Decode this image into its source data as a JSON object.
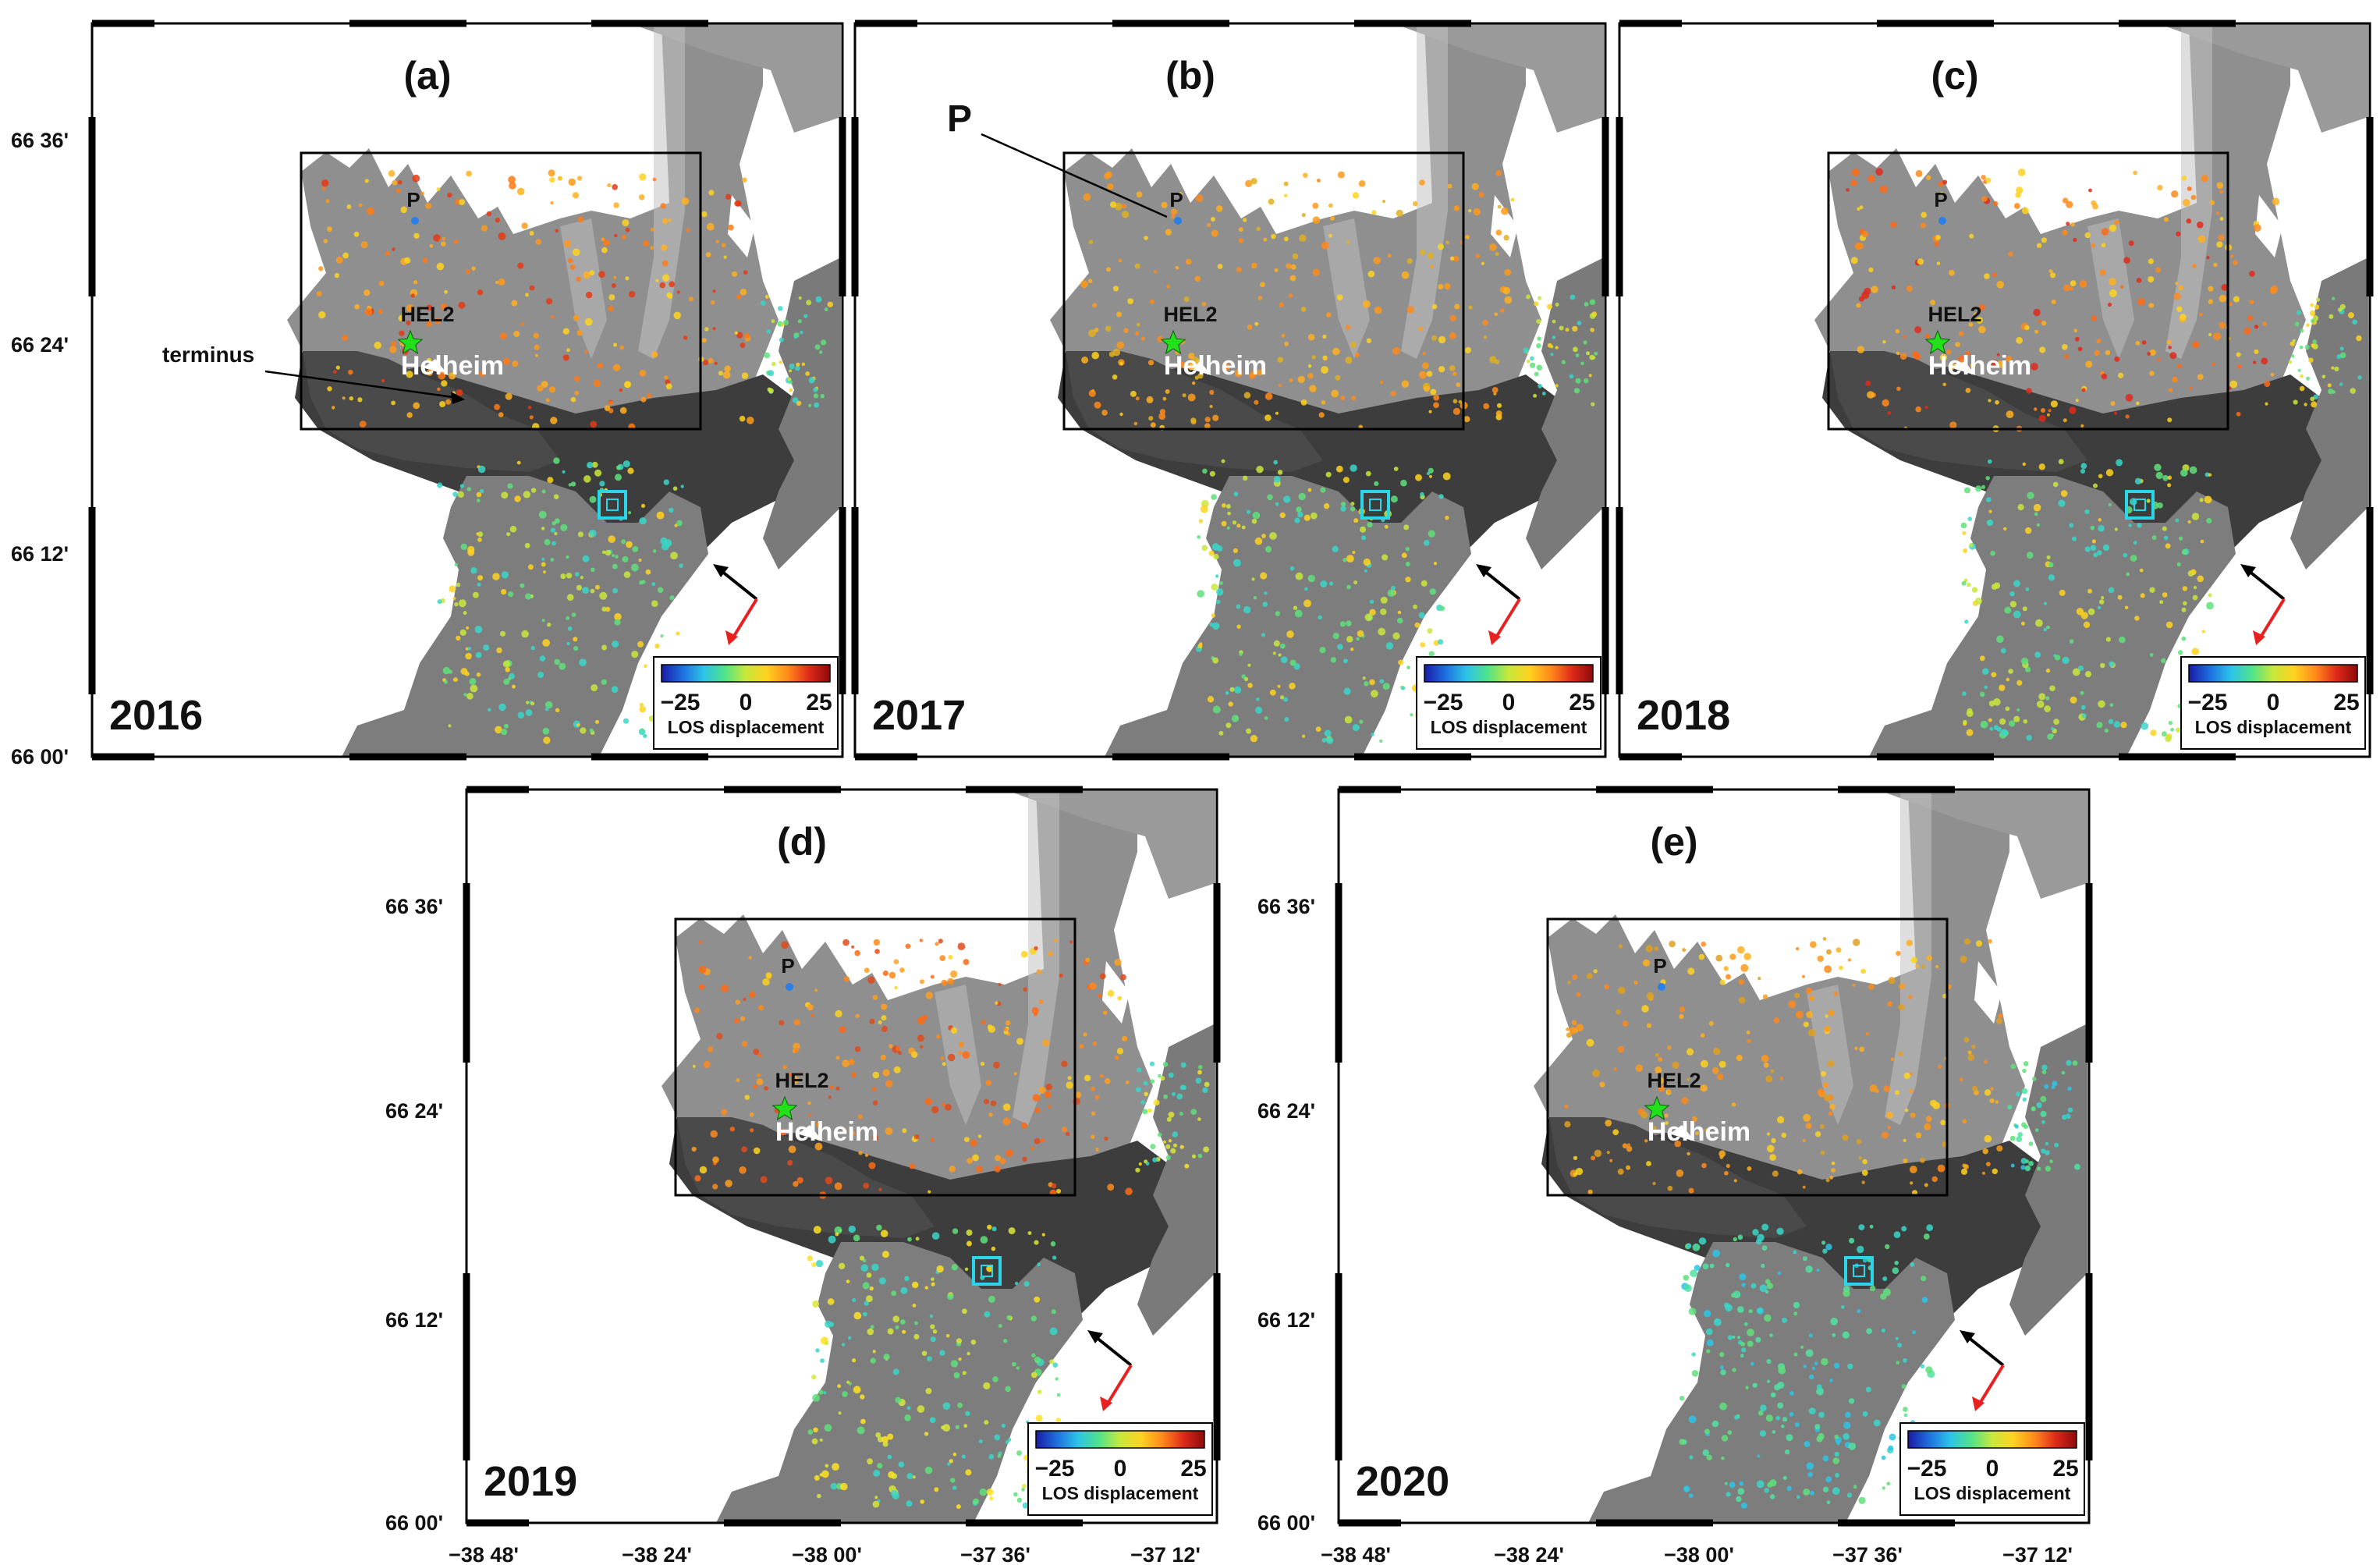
{
  "figure": {
    "lat_ticks": [
      "66 36'",
      "66 24'",
      "66 12'",
      "66 00'"
    ],
    "lon_ticks": [
      "−38 48'",
      "−38 24'",
      "−38 00'",
      "−37 36'",
      "−37 12'"
    ],
    "colorbar": {
      "min_label": "−25",
      "mid_label": "0",
      "max_label": "25",
      "title": "LOS displacement",
      "colors": [
        "#1a1aa6",
        "#1f6fe0",
        "#2bc4e8",
        "#4fe38a",
        "#c8e83a",
        "#ffd21f",
        "#ff8a1a",
        "#e02a1a",
        "#8c0a0a"
      ]
    },
    "place_name": "Helheim",
    "station_name": "HEL2",
    "point_name": "P",
    "terminus_label": "terminus",
    "panels": [
      {
        "label": "(a)",
        "year": "2016"
      },
      {
        "label": "(b)",
        "year": "2017"
      },
      {
        "label": "(c)",
        "year": "2018"
      },
      {
        "label": "(d)",
        "year": "2019"
      },
      {
        "label": "(e)",
        "year": "2020"
      }
    ]
  }
}
